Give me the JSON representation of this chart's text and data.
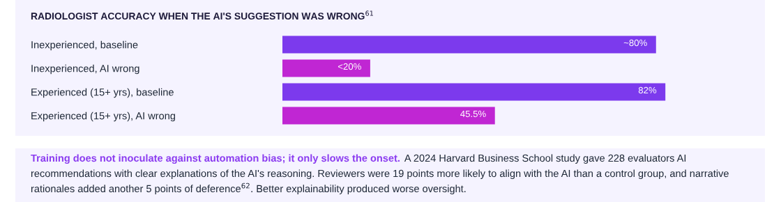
{
  "chart_data": [
    {
      "type": "bar",
      "orientation": "horizontal",
      "title": "RADIOLOGIST ACCURACY WHEN THE AI'S SUGGESTION WAS WRONG$^{61}$",
      "categories": [
        "Inexperienced, baseline",
        "Inexperienced, AI wrong",
        "Experienced (15+ yrs), baseline",
        "Experienced (15+ yrs), AI wrong"
      ],
      "values": [
        80,
        18.8,
        82,
        45.5
      ],
      "colors": [
        "#7c3aed",
        "#c026d3",
        "#7c3aed",
        "#c026d3"
      ],
      "value_labels": [
        "~80%",
        "<20%",
        "82%",
        "45.5%"
      ],
      "tick_labels": "y",
      "grid": false,
      "legend": false
    },
    {
      "type": "other",
      "annotations": [
        "Training does not inoculate against automation bias; it only slows the onset.",
        "A 2024 Harvard Business School study gave 228 evaluators AI",
        "recommendations with clear explanations of the AI's reasoning. Reviewers were 19 points more likely to align with the AI than a control group, and narrative",
        "rationales added another 5 points of deference$^{62}$. Better explainability produced worse oversight."
      ]
    }
  ]
}
